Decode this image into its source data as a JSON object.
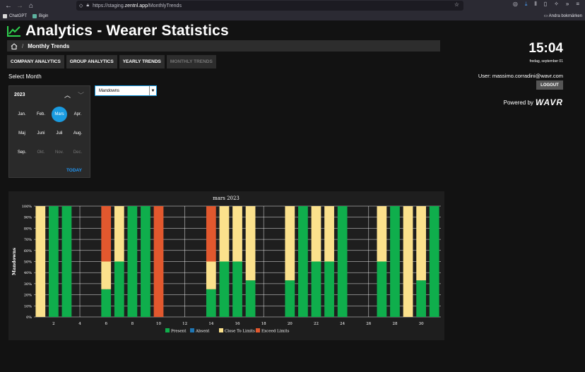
{
  "browser": {
    "url_prefix": "https://staging.",
    "url_host": "zentnl.app",
    "url_path": "/MonthlyTrends",
    "bookmarks": [
      "ChatGPT",
      "Bigin"
    ],
    "other_bookmarks": "Andra bokmärken"
  },
  "header": {
    "title": "Analytics - Wearer Statistics",
    "breadcrumb_current": "Monthly Trends",
    "breadcrumb_sep": "/"
  },
  "tabs": [
    {
      "label": "COMPANY ANALYTICS",
      "disabled": false
    },
    {
      "label": "GROUP ANALYTICS",
      "disabled": false
    },
    {
      "label": "YEARLY TRENDS",
      "disabled": false
    },
    {
      "label": "MONTHLY TRENDS",
      "disabled": true
    }
  ],
  "month_picker": {
    "section_label": "Select Month",
    "year": "2023",
    "months": [
      "Jan.",
      "Feb.",
      "Mars",
      "Apr.",
      "Maj",
      "Juni",
      "Juli",
      "Aug.",
      "Sep.",
      "Okt.",
      "Nov.",
      "Dec."
    ],
    "selected_index": 2,
    "today_label": "TODAY"
  },
  "metric_select": {
    "value": "Mandowns"
  },
  "sidebar": {
    "time": "15:04",
    "date": "fredag, september 01",
    "user": "User: massimo.corradini@wavr.com",
    "logout_label": "LOGOUT",
    "powered_by": "Powered by",
    "brand": "WAVR"
  },
  "colors": {
    "present": "#0fae4c",
    "absent": "#1f77b4",
    "close": "#fbe18c",
    "exceed": "#e2582e"
  },
  "chart_data": {
    "type": "bar",
    "stacked": true,
    "title": "mars 2023",
    "ylabel": "Mandowns",
    "ylim": [
      0,
      100
    ],
    "yticks": [
      "0%",
      "10%",
      "20%",
      "30%",
      "40%",
      "50%",
      "60%",
      "70%",
      "80%",
      "90%",
      "100%"
    ],
    "xticks": [
      2,
      4,
      6,
      8,
      10,
      12,
      14,
      16,
      18,
      20,
      22,
      24,
      26,
      28,
      30
    ],
    "days": [
      1,
      2,
      3,
      4,
      5,
      6,
      7,
      8,
      9,
      10,
      11,
      12,
      13,
      14,
      15,
      16,
      17,
      18,
      19,
      20,
      21,
      22,
      23,
      24,
      25,
      26,
      27,
      28,
      29,
      30,
      31
    ],
    "series": [
      {
        "name": "Present",
        "color": "#0fae4c",
        "values": [
          0,
          100,
          100,
          0,
          0,
          25,
          50,
          100,
          100,
          0,
          0,
          0,
          0,
          25,
          50,
          50,
          33,
          0,
          0,
          33,
          100,
          50,
          50,
          100,
          0,
          0,
          50,
          100,
          0,
          33,
          100
        ]
      },
      {
        "name": "Absent",
        "color": "#1f77b4",
        "values": [
          0,
          0,
          0,
          0,
          0,
          0,
          0,
          0,
          0,
          0,
          0,
          0,
          0,
          0,
          0,
          0,
          0,
          0,
          0,
          0,
          0,
          0,
          0,
          0,
          0,
          0,
          0,
          0,
          0,
          0,
          0
        ]
      },
      {
        "name": "Close To Limits",
        "color": "#fbe18c",
        "values": [
          100,
          0,
          0,
          0,
          0,
          25,
          50,
          0,
          0,
          0,
          0,
          0,
          0,
          25,
          50,
          50,
          67,
          0,
          0,
          67,
          0,
          50,
          50,
          0,
          0,
          0,
          50,
          0,
          100,
          67,
          0
        ]
      },
      {
        "name": "Exceed Limits",
        "color": "#e2582e",
        "values": [
          0,
          0,
          0,
          0,
          0,
          50,
          0,
          0,
          0,
          100,
          0,
          0,
          0,
          50,
          0,
          0,
          0,
          0,
          0,
          0,
          0,
          0,
          0,
          0,
          0,
          0,
          0,
          0,
          0,
          0,
          0
        ]
      }
    ],
    "legend": "bottom"
  }
}
